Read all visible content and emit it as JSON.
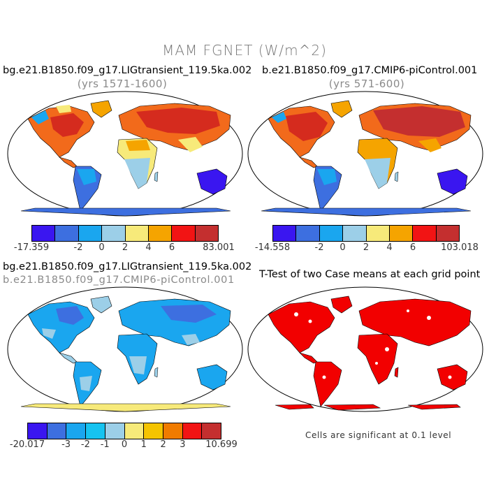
{
  "figure": {
    "main_title": "MAM FGNET (W/m^2)",
    "variable": "FGNET",
    "season": "MAM",
    "units": "W/m^2"
  },
  "panels": [
    {
      "id": "top-left",
      "title": "bg.e21.B1850.f09_g17.LIGtransient_119.5ka.002",
      "subtitle": "(yrs 1571-1600)",
      "colorbar": {
        "colors": [
          "#3a16f0",
          "#3d6fe0",
          "#1aa6ef",
          "#9ccfe8",
          "#f7ea7a",
          "#f5a400",
          "#f21414",
          "#c42f2f"
        ],
        "labels": [
          "-17.359",
          "-2",
          "0",
          "2",
          "4",
          "6",
          "83.001"
        ]
      }
    },
    {
      "id": "top-right",
      "title": "b.e21.B1850.f09_g17.CMIP6-piControl.001",
      "subtitle": "(yrs 571-600)",
      "colorbar": {
        "colors": [
          "#3a16f0",
          "#3d6fe0",
          "#1aa6ef",
          "#9ccfe8",
          "#f7ea7a",
          "#f5a400",
          "#f21414",
          "#c42f2f"
        ],
        "labels": [
          "-14.558",
          "-2",
          "0",
          "2",
          "4",
          "6",
          "103.018"
        ]
      }
    },
    {
      "id": "bottom-left",
      "title": "bg.e21.B1850.f09_g17.LIGtransient_119.5ka.002",
      "subtitle": "b.e21.B1850.f09_g17.CMIP6-piControl.001",
      "colorbar": {
        "colors": [
          "#3a16f0",
          "#3d6fe0",
          "#1aa6ef",
          "#16c3f0",
          "#9ccfe8",
          "#f7ea7a",
          "#f5c400",
          "#f07b00",
          "#f21414",
          "#c42f2f"
        ],
        "labels": [
          "-20.017",
          "-3",
          "-2",
          "-1",
          "0",
          "1",
          "2",
          "3",
          "10.699"
        ]
      }
    },
    {
      "id": "bottom-right",
      "title": "T-Test of two Case means at each grid point",
      "note": "Cells are significant at 0.1 level",
      "significance_color": "#f20000"
    }
  ]
}
